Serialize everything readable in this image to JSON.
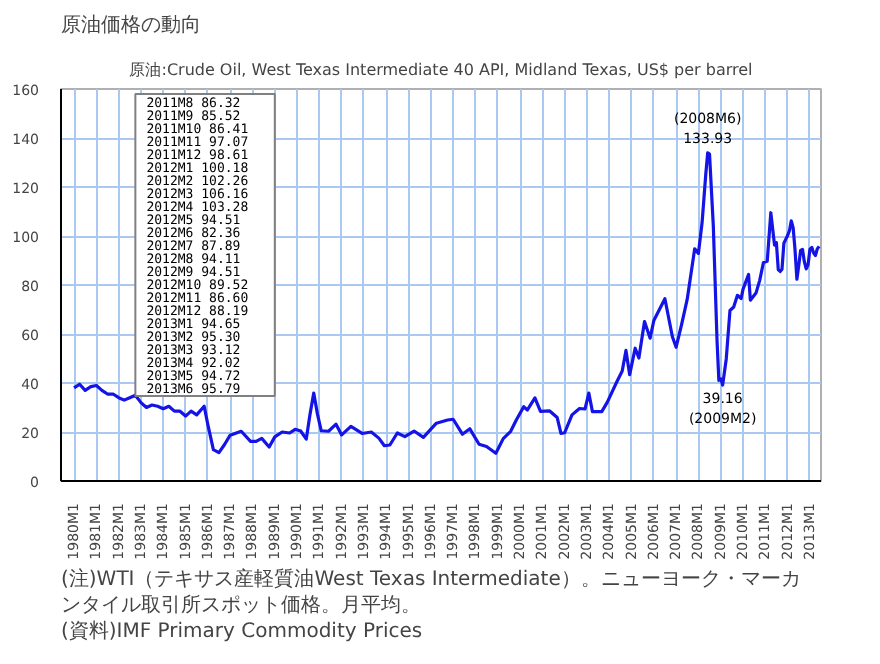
{
  "chart_data": {
    "type": "line",
    "title": "原油価格の動向",
    "subtitle": "原油:Crude Oil, West Texas Intermediate 40 API, Midland Texas, US$ per barrel",
    "xlim": [
      "1979-06",
      "2013-07"
    ],
    "xticks": [
      {
        "value": "1980-01",
        "label": "1980M1"
      },
      {
        "value": "1981-01",
        "label": "1981M1"
      },
      {
        "value": "1982-01",
        "label": "1982M1"
      },
      {
        "value": "1983-01",
        "label": "1983M1"
      },
      {
        "value": "1984-01",
        "label": "1984M1"
      },
      {
        "value": "1985-01",
        "label": "1985M1"
      },
      {
        "value": "1986-01",
        "label": "1986M1"
      },
      {
        "value": "1987-01",
        "label": "1987M1"
      },
      {
        "value": "1988-01",
        "label": "1988M1"
      },
      {
        "value": "1989-01",
        "label": "1989M1"
      },
      {
        "value": "1990-01",
        "label": "1990M1"
      },
      {
        "value": "1991-01",
        "label": "1991M1"
      },
      {
        "value": "1992-01",
        "label": "1992M1"
      },
      {
        "value": "1993-01",
        "label": "1993M1"
      },
      {
        "value": "1994-01",
        "label": "1994M1"
      },
      {
        "value": "1995-01",
        "label": "1995M1"
      },
      {
        "value": "1996-01",
        "label": "1996M1"
      },
      {
        "value": "1997-01",
        "label": "1997M1"
      },
      {
        "value": "1998-01",
        "label": "1998M1"
      },
      {
        "value": "1999-01",
        "label": "1999M1"
      },
      {
        "value": "2000-01",
        "label": "2000M1"
      },
      {
        "value": "2001-01",
        "label": "2001M1"
      },
      {
        "value": "2002-01",
        "label": "2002M1"
      },
      {
        "value": "2003-01",
        "label": "2003M1"
      },
      {
        "value": "2004-01",
        "label": "2004M1"
      },
      {
        "value": "2005-01",
        "label": "2005M1"
      },
      {
        "value": "2006-01",
        "label": "2006M1"
      },
      {
        "value": "2007-01",
        "label": "2007M1"
      },
      {
        "value": "2008-01",
        "label": "2008M1"
      },
      {
        "value": "2009-01",
        "label": "2009M1"
      },
      {
        "value": "2010-01",
        "label": "2010M1"
      },
      {
        "value": "2011-01",
        "label": "2011M1"
      },
      {
        "value": "2012-01",
        "label": "2012M1"
      },
      {
        "value": "2013-01",
        "label": "2013M1"
      }
    ],
    "ylim": [
      0,
      160
    ],
    "yticks": [
      0,
      20,
      40,
      60,
      80,
      100,
      120,
      140,
      160
    ],
    "grid": true,
    "x": [
      "1980-01",
      "1980-04",
      "1980-07",
      "1980-10",
      "1981-01",
      "1981-04",
      "1981-07",
      "1981-10",
      "1982-01",
      "1982-04",
      "1982-07",
      "1982-10",
      "1983-01",
      "1983-04",
      "1983-07",
      "1983-10",
      "1984-01",
      "1984-04",
      "1984-07",
      "1984-10",
      "1985-01",
      "1985-04",
      "1985-07",
      "1985-11",
      "1986-01",
      "1986-04",
      "1986-07",
      "1986-10",
      "1987-01",
      "1987-07",
      "1987-12",
      "1988-03",
      "1988-06",
      "1988-10",
      "1989-01",
      "1989-05",
      "1989-09",
      "1989-12",
      "1990-03",
      "1990-06",
      "1990-08",
      "1990-10",
      "1990-12",
      "1991-02",
      "1991-06",
      "1991-10",
      "1992-01",
      "1992-06",
      "1992-12",
      "1993-05",
      "1993-09",
      "1993-12",
      "1994-03",
      "1994-07",
      "1994-11",
      "1995-04",
      "1995-09",
      "1996-04",
      "1996-10",
      "1997-01",
      "1997-06",
      "1997-10",
      "1998-03",
      "1998-07",
      "1998-12",
      "1999-04",
      "1999-08",
      "1999-11",
      "2000-03",
      "2000-05",
      "2000-09",
      "2000-12",
      "2001-05",
      "2001-09",
      "2001-11",
      "2002-01",
      "2002-05",
      "2002-09",
      "2002-12",
      "2003-02",
      "2003-04",
      "2003-09",
      "2003-12",
      "2004-05",
      "2004-08",
      "2004-10",
      "2004-12",
      "2005-03",
      "2005-05",
      "2005-08",
      "2005-11",
      "2006-01",
      "2006-07",
      "2006-11",
      "2007-01",
      "2007-04",
      "2007-07",
      "2007-11",
      "2008-01",
      "2008-03",
      "2008-05",
      "2008-06",
      "2008-07",
      "2008-09",
      "2008-11",
      "2008-12",
      "2009-01",
      "2009-02",
      "2009-04",
      "2009-06",
      "2009-08",
      "2009-10",
      "2009-12",
      "2010-01",
      "2010-04",
      "2010-05",
      "2010-08",
      "2010-10",
      "2010-12",
      "2011-02",
      "2011-04",
      "2011-06",
      "2011-07",
      "2011-08",
      "2011-09",
      "2011-10",
      "2011-11",
      "2011-12",
      "2012-01",
      "2012-02",
      "2012-03",
      "2012-04",
      "2012-05",
      "2012-06",
      "2012-07",
      "2012-08",
      "2012-09",
      "2012-10",
      "2012-11",
      "2012-12",
      "2013-01",
      "2013-02",
      "2013-03",
      "2013-04",
      "2013-05",
      "2013-06"
    ],
    "series": [
      {
        "color": "#1414e6",
        "values": [
          38,
          39.5,
          37,
          38.5,
          39,
          37,
          35.5,
          35.5,
          34,
          33,
          34,
          35,
          32,
          30,
          31,
          30.5,
          29.5,
          30.5,
          28.5,
          28.5,
          26.5,
          28.5,
          27,
          30.5,
          22.9,
          12.8,
          11.6,
          14.9,
          18.7,
          20.3,
          16.2,
          16.2,
          17.4,
          13.9,
          18,
          20,
          19.6,
          21.1,
          20.4,
          17.1,
          27.2,
          35.9,
          27.3,
          20.5,
          20.3,
          23.2,
          18.8,
          22.3,
          19.4,
          20,
          17.5,
          14.4,
          14.7,
          19.6,
          18.1,
          20.4,
          17.8,
          23.6,
          24.9,
          25.2,
          19.1,
          21.3,
          15,
          14.1,
          11.3,
          17.3,
          20.3,
          24.9,
          30.3,
          29,
          33.9,
          28.4,
          28.6,
          25.9,
          19.4,
          19.7,
          27,
          29.6,
          29.4,
          35.9,
          28.3,
          28.3,
          32.2,
          40.3,
          44.9,
          53.3,
          43.4,
          54.2,
          50.2,
          65.1,
          58.3,
          65.5,
          74.4,
          58.9,
          54.6,
          63.9,
          74.1,
          94.8,
          92.9,
          105.4,
          125.4,
          133.93,
          133.4,
          104.1,
          57.3,
          41.1,
          41.7,
          39.16,
          49.8,
          69.6,
          71,
          75.8,
          74.5,
          78.3,
          84.3,
          73.8,
          76.7,
          81.9,
          89.2,
          89.7,
          109.5,
          96.3,
          97.3,
          86.32,
          85.52,
          86.41,
          97.07,
          98.61,
          100.18,
          102.26,
          106.16,
          103.28,
          94.51,
          82.36,
          87.89,
          94.11,
          94.51,
          89.52,
          86.6,
          88.19,
          94.65,
          95.3,
          93.12,
          92.02,
          94.72,
          95.79
        ]
      }
    ],
    "annotations": [
      {
        "text": "(2008M6)\n133.93",
        "x": "2008-06",
        "y": 133.93
      },
      {
        "text": "39.16\n(2009M2)",
        "x": "2009-02",
        "y": 39.16
      },
      "2011M8\t86.32",
      "2011M9\t85.52",
      "2011M10\t86.41",
      "2011M11\t97.07",
      "2011M12\t98.61",
      "2012M1\t100.18",
      "2012M2\t102.26",
      "2012M3\t106.16",
      "2012M4\t103.28",
      "2012M5\t94.51",
      "2012M6\t82.36",
      "2012M7\t87.89",
      "2012M8\t94.11",
      "2012M9\t94.51",
      "2012M10\t89.52",
      "2012M11\t86.60",
      "2012M12\t88.19",
      "2013M1\t94.65",
      "2013M2\t95.30",
      "2013M3\t93.12",
      "2013M4\t92.02",
      "2013M5\t94.72",
      "2013M6\t95.79",
      "(注)WTI（テキサス産軽質油West Texas Intermediate）。ニューヨーク・マーカンタイル取引所スポット価格。月平均。",
      "(資料)IMF Primary Commodity Prices"
    ]
  }
}
